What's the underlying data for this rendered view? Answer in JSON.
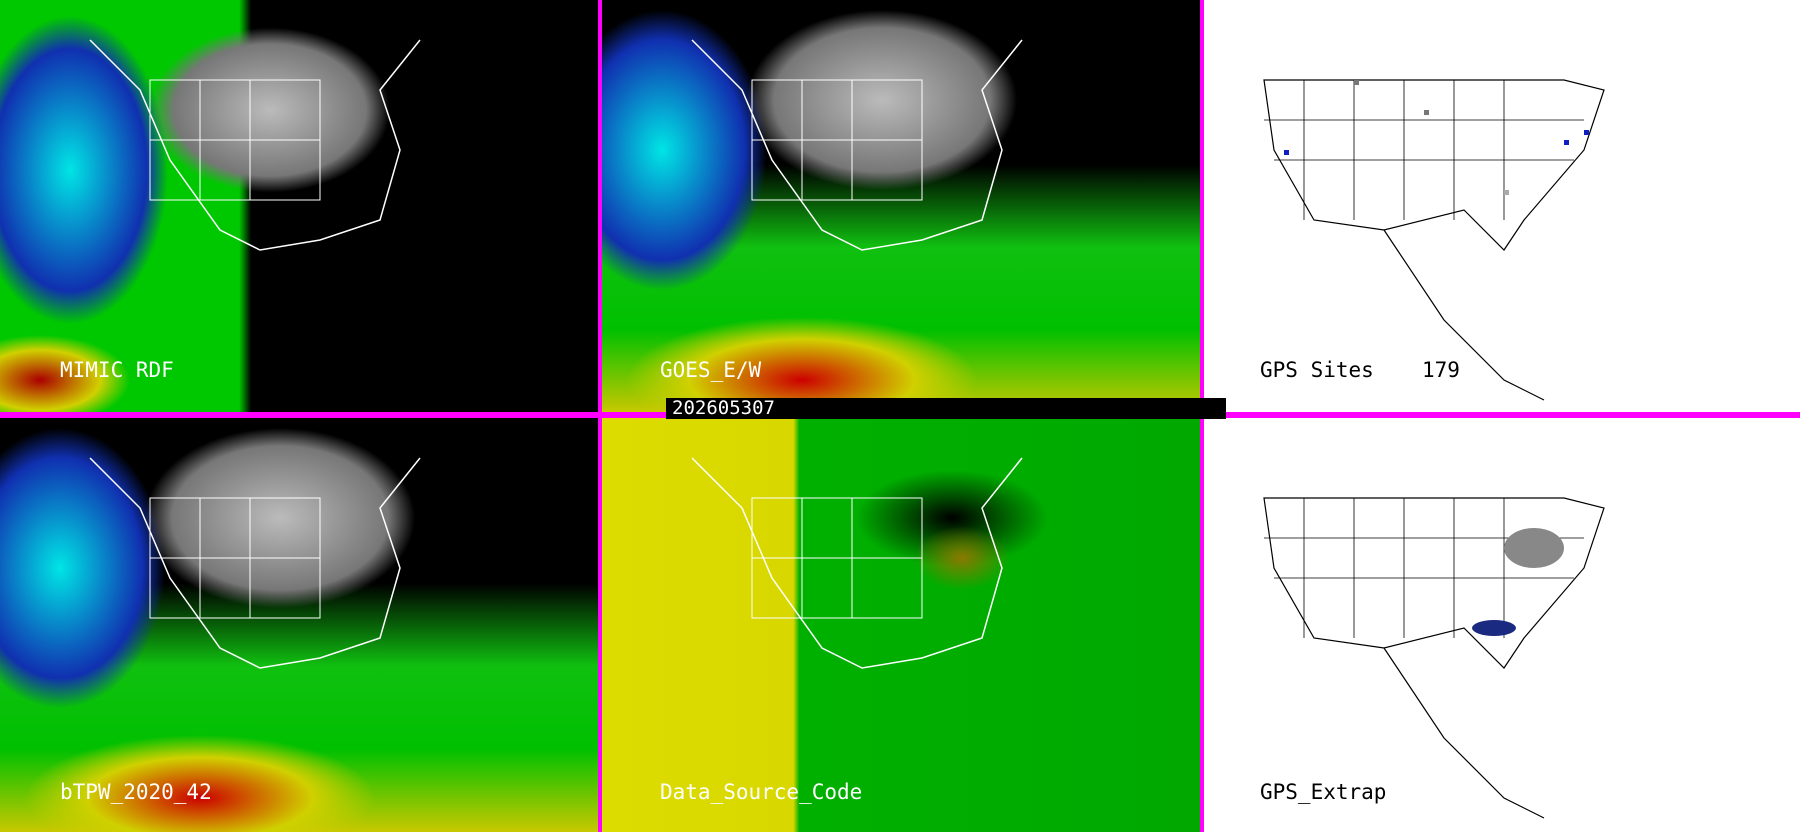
{
  "panels": [
    {
      "label": "MIMIC RDF"
    },
    {
      "label": "GOES_E/W"
    },
    {
      "label": "GPS Sites",
      "count": "179"
    },
    {
      "label": "bTPW_2020_42"
    },
    {
      "label": "Data_Source_Code"
    },
    {
      "label": "GPS_Extrap"
    }
  ],
  "timestamp": "202605307",
  "colors": {
    "border": "#ff00ff",
    "gps_site_gray": "#777777",
    "gps_site_blue": "#1020c0"
  }
}
